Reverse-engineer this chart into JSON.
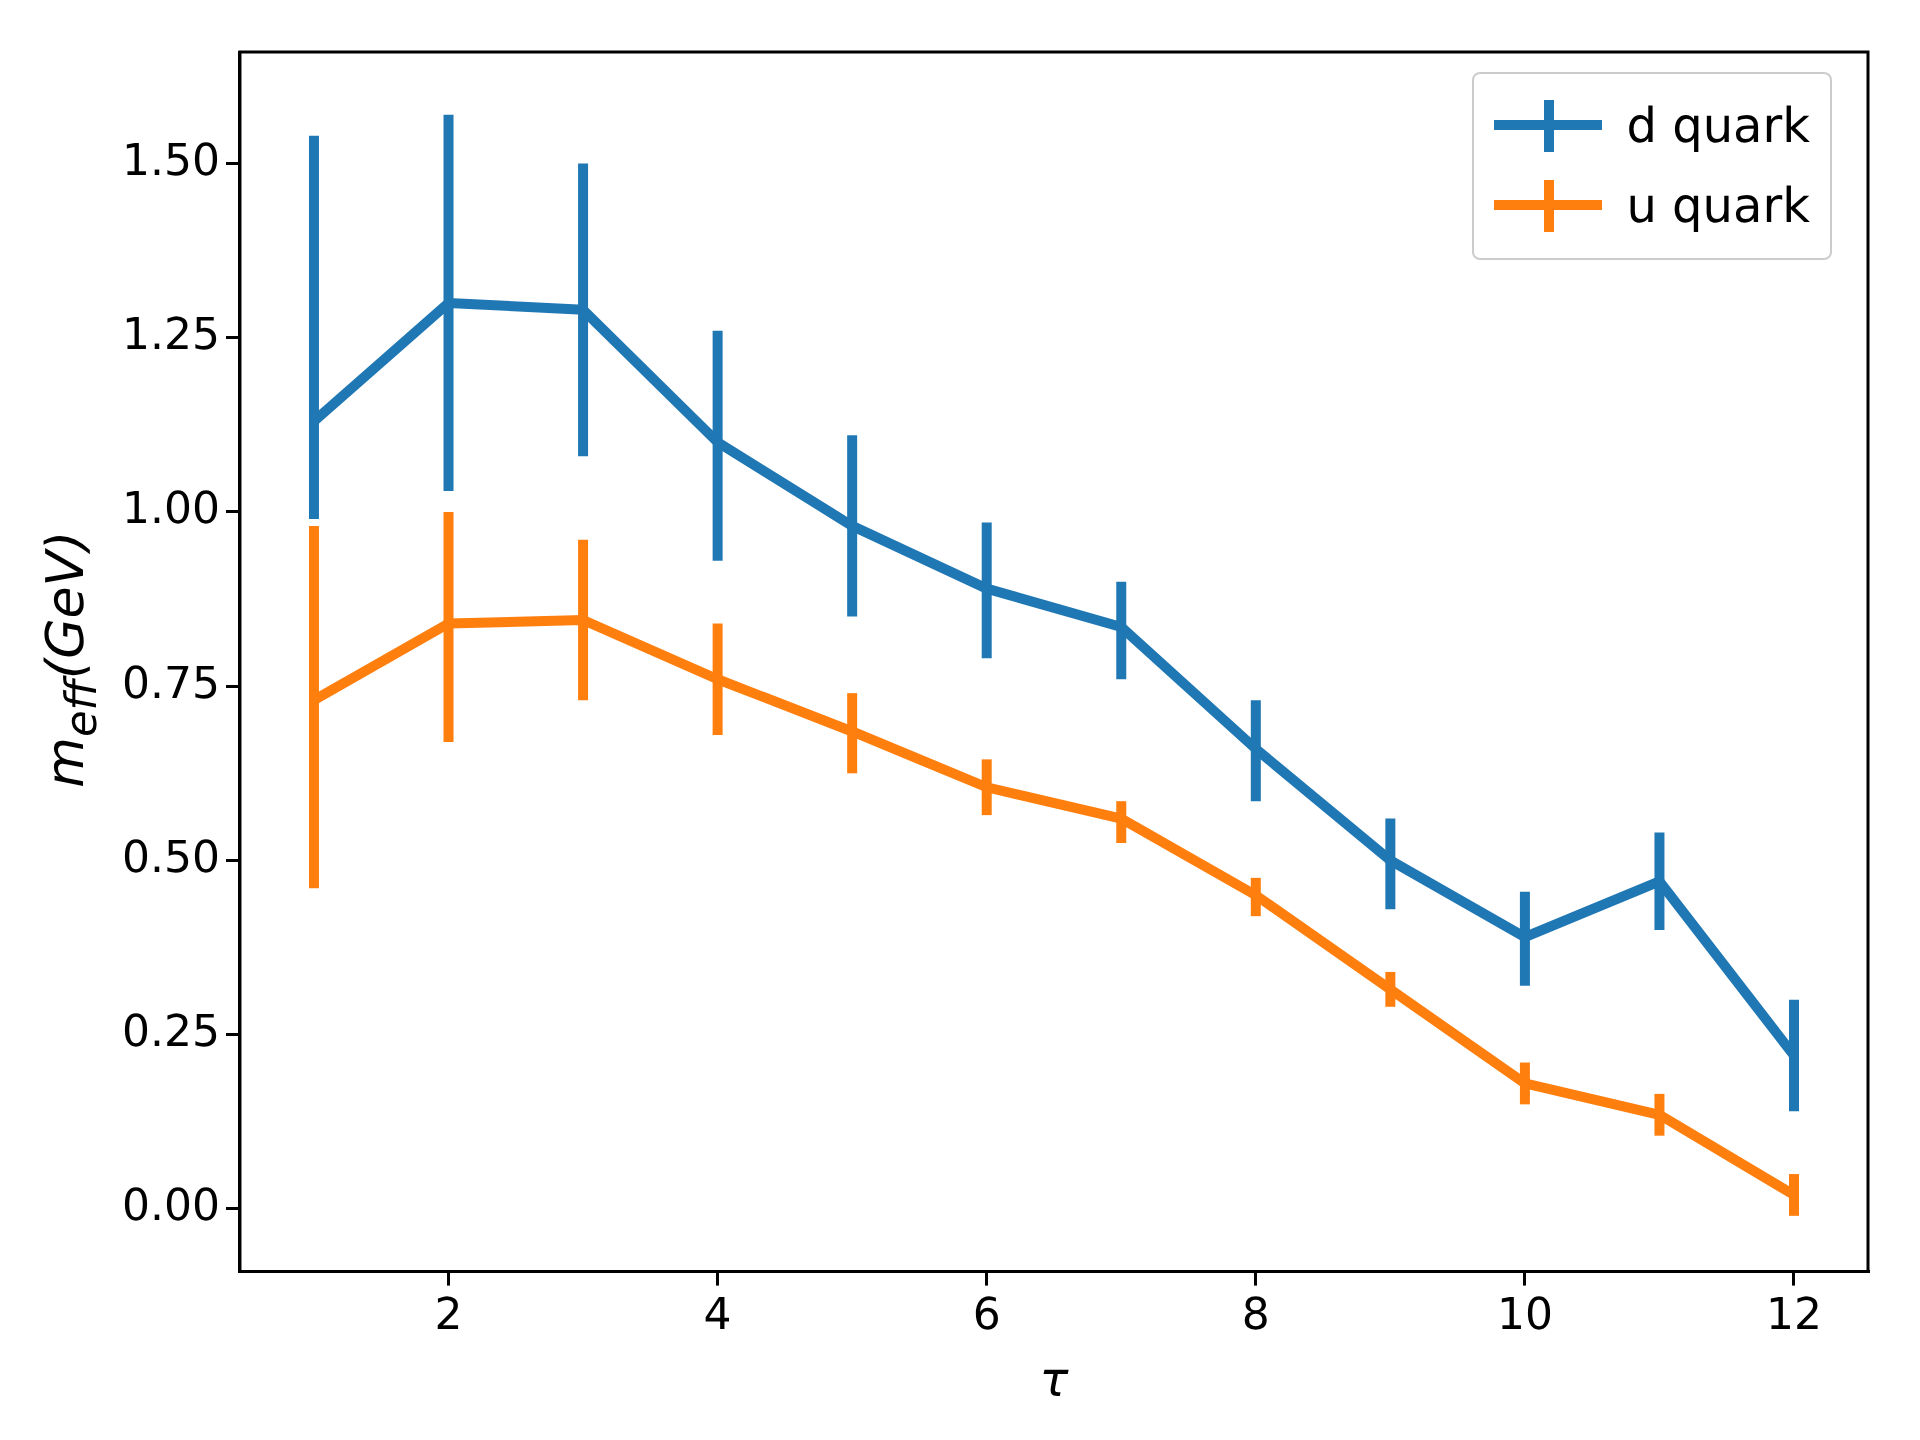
{
  "chart_data": {
    "type": "line",
    "xlabel": "τ",
    "ylabel": "m$_{eff}$(GeV)",
    "x": [
      1,
      2,
      3,
      4,
      5,
      6,
      7,
      8,
      9,
      10,
      11,
      12
    ],
    "series": [
      {
        "name": "d quark",
        "color": "#1f77b4",
        "values": [
          1.13,
          1.3,
          1.29,
          1.1,
          0.98,
          0.89,
          0.835,
          0.66,
          0.5,
          0.39,
          0.47,
          0.22
        ],
        "errors": [
          [
            0.99,
            1.54
          ],
          [
            1.03,
            1.57
          ],
          [
            1.08,
            1.5
          ],
          [
            0.93,
            1.26
          ],
          [
            0.85,
            1.11
          ],
          [
            0.79,
            0.985
          ],
          [
            0.76,
            0.9
          ],
          [
            0.585,
            0.73
          ],
          [
            0.43,
            0.56
          ],
          [
            0.32,
            0.455
          ],
          [
            0.4,
            0.54
          ],
          [
            0.14,
            0.3
          ]
        ]
      },
      {
        "name": "u quark",
        "color": "#ff7f0e",
        "values": [
          0.73,
          0.84,
          0.845,
          0.76,
          0.685,
          0.605,
          0.56,
          0.45,
          0.315,
          0.18,
          0.135,
          0.02
        ],
        "errors": [
          [
            0.46,
            0.98
          ],
          [
            0.67,
            1.0
          ],
          [
            0.73,
            0.96
          ],
          [
            0.68,
            0.84
          ],
          [
            0.625,
            0.74
          ],
          [
            0.565,
            0.645
          ],
          [
            0.525,
            0.585
          ],
          [
            0.42,
            0.475
          ],
          [
            0.29,
            0.34
          ],
          [
            0.15,
            0.21
          ],
          [
            0.105,
            0.165
          ],
          [
            -0.01,
            0.05
          ]
        ]
      }
    ],
    "xlim": [
      0.45,
      12.55
    ],
    "xticks": [
      2,
      4,
      6,
      8,
      10,
      12
    ],
    "ylim": [
      -0.09,
      1.66
    ],
    "yticks": [
      {
        "value": 0,
        "label": "0.00"
      },
      {
        "value": 0.25,
        "label": "0.25"
      },
      {
        "value": 0.5,
        "label": "0.50"
      },
      {
        "value": 0.75,
        "label": "0.75"
      },
      {
        "value": 1,
        "label": "1.00"
      },
      {
        "value": 1.25,
        "label": "1.25"
      },
      {
        "value": 1.5,
        "label": "1.50"
      }
    ],
    "grid": false,
    "legend": "top right",
    "marker": "none",
    "line_style": "solid"
  }
}
